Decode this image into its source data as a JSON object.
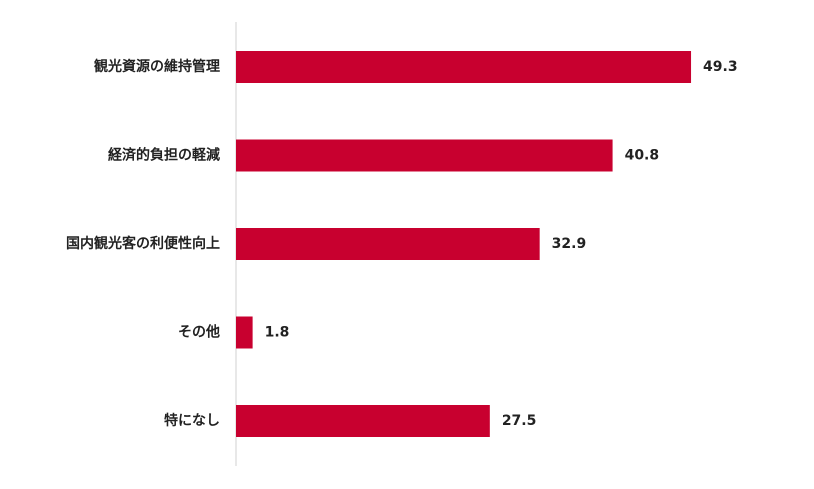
{
  "chart_data": {
    "type": "bar",
    "orientation": "horizontal",
    "categories": [
      "観光資源の維持管理",
      "経済的負担の軽減",
      "国内観光客の利便性向上",
      "その他",
      "特になし"
    ],
    "values": [
      49.3,
      40.8,
      32.9,
      1.8,
      27.5
    ],
    "color": "#c8002f"
  }
}
